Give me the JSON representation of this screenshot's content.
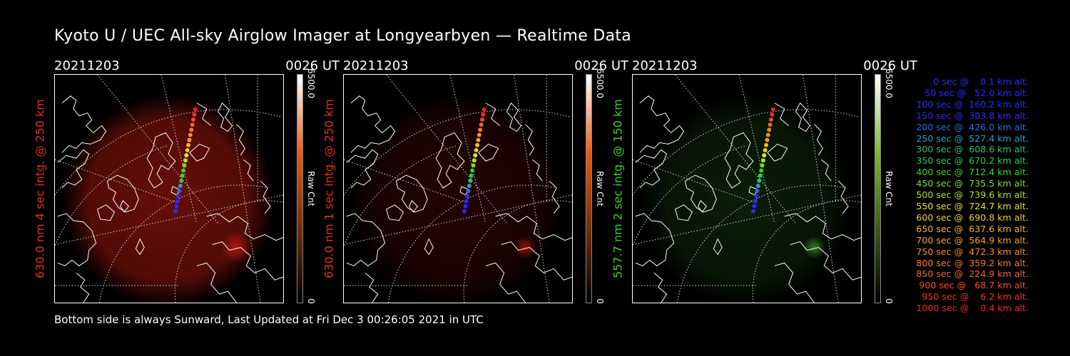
{
  "title": "Kyoto U / UEC All-sky Airglow Imager at Longyearbyen — Realtime Data",
  "footer": "Bottom side is always Sunward, Last Updated at Fri Dec  3 00:26:05 2021 in UTC",
  "panels": [
    {
      "date": "20211203",
      "time": "0026 UT",
      "label": "630.0 nm 4 sec intg. @ 250 km",
      "label_color": "#e0301a",
      "colorbar": {
        "max": "6500.0",
        "unit": "Raw Cnt",
        "min": "0",
        "top_color": "#ffffff",
        "mid_color": "#e85a10",
        "bottom_color": "#000000"
      }
    },
    {
      "date": "20211203",
      "time": "0026 UT",
      "label": "630.0 nm 1 sec intg. @ 250 km",
      "label_color": "#e0301a",
      "colorbar": {
        "max": "6500.0",
        "unit": "Raw Cnt",
        "min": "0",
        "top_color": "#ffffff",
        "mid_color": "#e85a10",
        "bottom_color": "#000000"
      }
    },
    {
      "date": "20211203",
      "time": "0026 UT",
      "label": "557.7 nm 2 sec intg. @ 150 km",
      "label_color": "#3ccd2a",
      "colorbar": {
        "max": "6500.0",
        "unit": "Raw Cnt",
        "min": "0",
        "top_color": "#ffffff",
        "mid_color": "#7ab82a",
        "bottom_color": "#000000"
      }
    }
  ],
  "legend": [
    {
      "text": "   0 sec @    0.1 km alt.",
      "color": "#2b2bff"
    },
    {
      "text": "  50 sec @   52.0 km alt.",
      "color": "#2b2bff"
    },
    {
      "text": " 100 sec @  160.2 km alt.",
      "color": "#2b2bff"
    },
    {
      "text": " 150 sec @  303.8 km alt.",
      "color": "#2b2bff"
    },
    {
      "text": " 200 sec @  426.0 km alt.",
      "color": "#2b6be0"
    },
    {
      "text": " 250 sec @  527.4 km alt.",
      "color": "#2b9ec0"
    },
    {
      "text": " 300 sec @  608.6 km alt.",
      "color": "#2bc470"
    },
    {
      "text": " 350 sec @  670.2 km alt.",
      "color": "#2bd04a"
    },
    {
      "text": " 400 sec @  712.4 km alt.",
      "color": "#3cd42b"
    },
    {
      "text": " 450 sec @  735.5 km alt.",
      "color": "#80dc2b"
    },
    {
      "text": " 500 sec @  739.6 km alt.",
      "color": "#b8e02b"
    },
    {
      "text": " 550 sec @  724.7 km alt.",
      "color": "#e4e42b"
    },
    {
      "text": " 600 sec @  690.8 km alt.",
      "color": "#f0d02b"
    },
    {
      "text": " 650 sec @  637.6 km alt.",
      "color": "#f4b82b"
    },
    {
      "text": " 700 sec @  564.9 km alt.",
      "color": "#f4a02b"
    },
    {
      "text": " 750 sec @  472.3 km alt.",
      "color": "#f4902b"
    },
    {
      "text": " 800 sec @  359.2 km alt.",
      "color": "#f47c2b"
    },
    {
      "text": " 850 sec @  224.9 km alt.",
      "color": "#f4642b"
    },
    {
      "text": " 900 sec @   68.7 km alt.",
      "color": "#f44a2b"
    },
    {
      "text": " 950 sec @    6.2 km alt.",
      "color": "#f4302b"
    },
    {
      "text": "1000 sec @    0.4 km alt.",
      "color": "#f4202b"
    }
  ],
  "glow_colors": [
    "#b81a10",
    "#a01408",
    "#2e8a20"
  ]
}
